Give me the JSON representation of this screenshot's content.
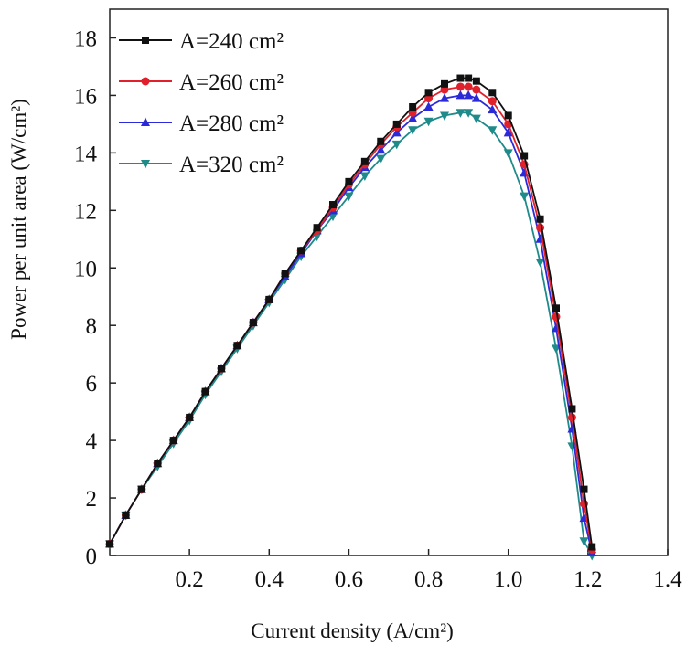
{
  "chart_data": {
    "type": "line",
    "xlabel": "Current density (A/cm²)",
    "ylabel": "Power per unit area (W/cm²)",
    "xlim": [
      0,
      1.4
    ],
    "ylim": [
      0,
      19
    ],
    "x_ticks": [
      0.2,
      0.4,
      0.6,
      0.8,
      1.0,
      1.2,
      1.4
    ],
    "x_tick_labels": [
      "0.2",
      "0.4",
      "0.6",
      "0.8",
      "1.0",
      "1.2",
      "1.4"
    ],
    "y_ticks": [
      0,
      2,
      4,
      6,
      8,
      10,
      12,
      14,
      16,
      18
    ],
    "y_tick_labels": [
      "0",
      "2",
      "4",
      "6",
      "8",
      "10",
      "12",
      "14",
      "16",
      "18"
    ],
    "legend_position": "top-left",
    "series": [
      {
        "name": "A=240 cm²",
        "color": "#111111",
        "marker": "square",
        "x": [
          0.0,
          0.04,
          0.08,
          0.12,
          0.16,
          0.2,
          0.24,
          0.28,
          0.32,
          0.36,
          0.4,
          0.44,
          0.48,
          0.52,
          0.56,
          0.6,
          0.64,
          0.68,
          0.72,
          0.76,
          0.8,
          0.84,
          0.88,
          0.9,
          0.92,
          0.96,
          1.0,
          1.04,
          1.08,
          1.12,
          1.16,
          1.19,
          1.21
        ],
        "values": [
          0.4,
          1.4,
          2.3,
          3.2,
          4.0,
          4.8,
          5.7,
          6.5,
          7.3,
          8.1,
          8.9,
          9.8,
          10.6,
          11.4,
          12.2,
          13.0,
          13.7,
          14.4,
          15.0,
          15.6,
          16.1,
          16.4,
          16.6,
          16.6,
          16.5,
          16.1,
          15.3,
          13.9,
          11.7,
          8.6,
          5.1,
          2.3,
          0.3
        ]
      },
      {
        "name": "A=260 cm²",
        "color": "#e0202a",
        "marker": "circle",
        "x": [
          0.0,
          0.04,
          0.08,
          0.12,
          0.16,
          0.2,
          0.24,
          0.28,
          0.32,
          0.36,
          0.4,
          0.44,
          0.48,
          0.52,
          0.56,
          0.6,
          0.64,
          0.68,
          0.72,
          0.76,
          0.8,
          0.84,
          0.88,
          0.9,
          0.92,
          0.96,
          1.0,
          1.04,
          1.08,
          1.12,
          1.16,
          1.19,
          1.21
        ],
        "values": [
          0.4,
          1.4,
          2.3,
          3.2,
          4.0,
          4.8,
          5.7,
          6.5,
          7.3,
          8.1,
          8.9,
          9.8,
          10.6,
          11.3,
          12.1,
          12.9,
          13.6,
          14.3,
          14.9,
          15.4,
          15.9,
          16.2,
          16.3,
          16.3,
          16.2,
          15.8,
          15.0,
          13.6,
          11.4,
          8.3,
          4.8,
          1.8,
          0.2
        ]
      },
      {
        "name": "A=280 cm²",
        "color": "#2a2ad8",
        "marker": "triangle-up",
        "x": [
          0.0,
          0.04,
          0.08,
          0.12,
          0.16,
          0.2,
          0.24,
          0.28,
          0.32,
          0.36,
          0.4,
          0.44,
          0.48,
          0.52,
          0.56,
          0.6,
          0.64,
          0.68,
          0.72,
          0.76,
          0.8,
          0.84,
          0.88,
          0.9,
          0.92,
          0.96,
          1.0,
          1.04,
          1.08,
          1.12,
          1.16,
          1.19,
          1.21
        ],
        "values": [
          0.4,
          1.4,
          2.3,
          3.2,
          4.0,
          4.8,
          5.7,
          6.5,
          7.3,
          8.1,
          8.9,
          9.7,
          10.5,
          11.3,
          12.0,
          12.8,
          13.5,
          14.1,
          14.7,
          15.2,
          15.6,
          15.9,
          16.0,
          16.0,
          15.9,
          15.5,
          14.7,
          13.3,
          11.0,
          7.9,
          4.4,
          1.3,
          0.1
        ]
      },
      {
        "name": "A=320 cm²",
        "color": "#1f8a8a",
        "marker": "triangle-down",
        "x": [
          0.0,
          0.04,
          0.08,
          0.12,
          0.16,
          0.2,
          0.24,
          0.28,
          0.32,
          0.36,
          0.4,
          0.44,
          0.48,
          0.52,
          0.56,
          0.6,
          0.64,
          0.68,
          0.72,
          0.76,
          0.8,
          0.84,
          0.88,
          0.9,
          0.92,
          0.96,
          1.0,
          1.04,
          1.08,
          1.12,
          1.16,
          1.19,
          1.21
        ],
        "values": [
          0.4,
          1.4,
          2.3,
          3.1,
          3.9,
          4.7,
          5.6,
          6.4,
          7.2,
          8.0,
          8.8,
          9.6,
          10.4,
          11.1,
          11.8,
          12.5,
          13.2,
          13.8,
          14.3,
          14.8,
          15.1,
          15.3,
          15.4,
          15.4,
          15.2,
          14.8,
          14.0,
          12.5,
          10.2,
          7.2,
          3.8,
          0.5,
          0.0
        ]
      }
    ]
  }
}
